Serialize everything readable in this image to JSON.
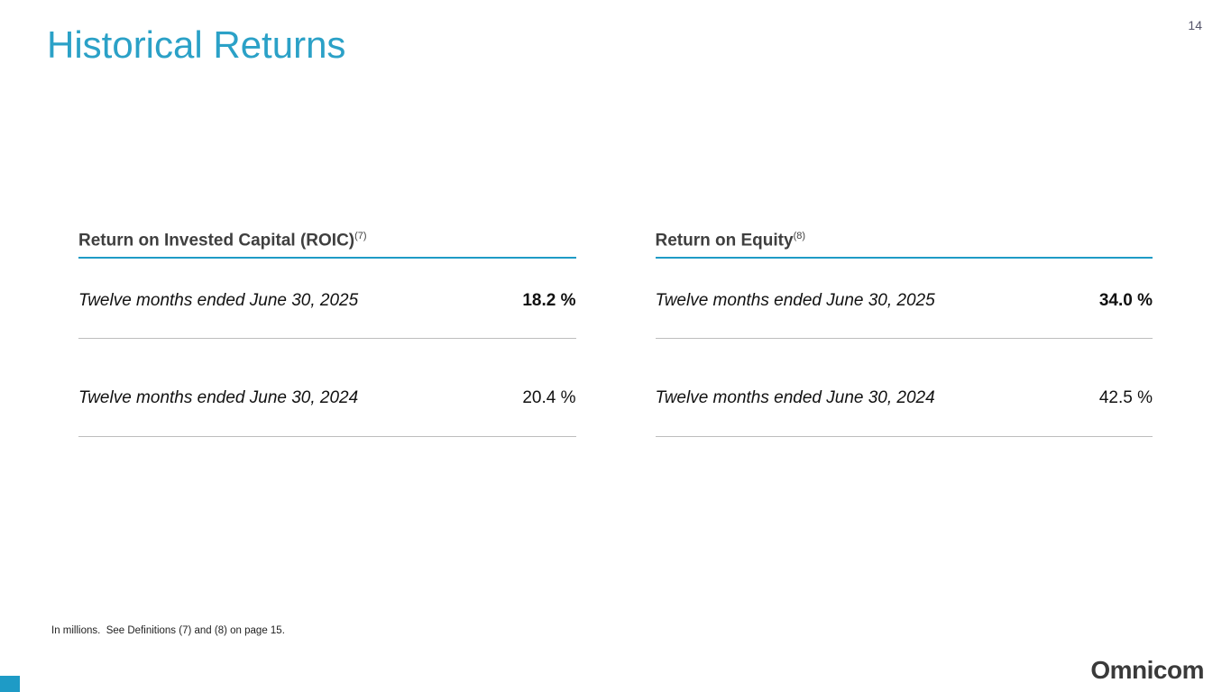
{
  "page": {
    "number": "14"
  },
  "title": "Historical Returns",
  "tables": [
    {
      "heading": "Return on Invested Capital (ROIC)",
      "footnote_ref": "(7)",
      "rows": [
        {
          "label": "Twelve months ended June 30, 2025",
          "value": "18.2 %",
          "bold": true
        },
        {
          "label": "Twelve months ended June 30, 2024",
          "value": "20.4 %",
          "bold": false
        }
      ]
    },
    {
      "heading": "Return on Equity",
      "footnote_ref": "(8)",
      "rows": [
        {
          "label": "Twelve months ended June 30, 2025",
          "value": "34.0 %",
          "bold": true
        },
        {
          "label": "Twelve months ended June 30, 2024",
          "value": "42.5 %",
          "bold": false
        }
      ]
    }
  ],
  "footer": {
    "note": "In millions.  See Definitions (7) and (8) on page 15."
  },
  "branding": {
    "logo": "Omnicom"
  },
  "colors": {
    "title": "#2ba1c7",
    "accent_rule": "#1e9bc6",
    "heading_text": "#3f3f3f",
    "row_rule": "#bdbdbd",
    "logo": "#3a3a3a"
  }
}
